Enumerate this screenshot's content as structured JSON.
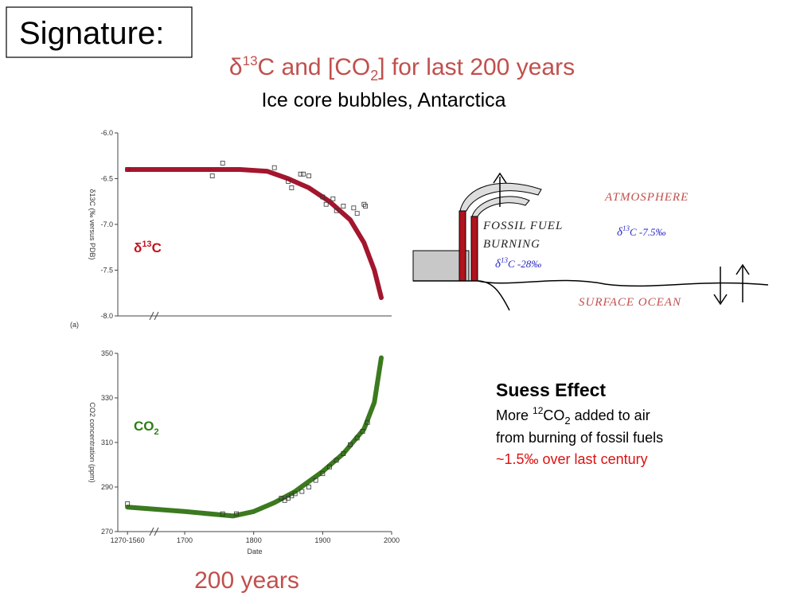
{
  "slide_title": "Signature:",
  "heading": [
    "δ",
    "13",
    "C and [CO",
    "2",
    "] for last 200 years"
  ],
  "subheading": "Ice core bubbles, Antarctica",
  "chart_data": [
    {
      "type": "line",
      "panel_label": "(a)",
      "ylabel": "δ13C (‰ versus PDB)",
      "annotation": [
        "δ",
        "13",
        "C"
      ],
      "annotation_script": "super",
      "annotation_color": "#c0141e",
      "xlim": [
        1603,
        2000
      ],
      "ylim": [
        -8.0,
        -6.0
      ],
      "yticks": [
        {
          "value": -6.0,
          "label": "-6.0"
        },
        {
          "value": -6.5,
          "label": "-6.5"
        },
        {
          "value": -7.0,
          "label": "-7.0"
        },
        {
          "value": -7.5,
          "label": "-7.5"
        },
        {
          "value": -8.0,
          "label": "-8.0"
        }
      ],
      "series": [
        {
          "mode": "line",
          "color": "#a3162e",
          "x": [
            1617,
            1700,
            1780,
            1820,
            1850,
            1880,
            1910,
            1940,
            1960,
            1975,
            1985
          ],
          "values": [
            -6.4,
            -6.4,
            -6.4,
            -6.42,
            -6.5,
            -6.6,
            -6.75,
            -6.95,
            -7.2,
            -7.5,
            -7.8
          ]
        },
        {
          "mode": "markers",
          "color": "#333333",
          "x": [
            1617,
            1755,
            1740,
            1830,
            1850,
            1855,
            1868,
            1872,
            1880,
            1900,
            1905,
            1915,
            1920,
            1930,
            1945,
            1950,
            1960,
            1962
          ],
          "values": [
            -6.4,
            -6.33,
            -6.47,
            -6.38,
            -6.53,
            -6.6,
            -6.45,
            -6.45,
            -6.47,
            -6.7,
            -6.78,
            -6.72,
            -6.85,
            -6.8,
            -6.82,
            -6.88,
            -6.78,
            -6.8
          ]
        }
      ]
    },
    {
      "type": "line",
      "ylabel": "CO2 concentration (ppm)",
      "xlabel": "Date",
      "annotation": [
        "CO",
        "2"
      ],
      "annotation_script": "sub",
      "annotation_color": "#2e7d14",
      "xlim": [
        1603,
        2000
      ],
      "ylim": [
        270,
        350
      ],
      "xticks": [
        {
          "value": 1617,
          "label": "1270-1560"
        },
        1700,
        1800,
        1900,
        2000
      ],
      "yticks": [
        270,
        290,
        310,
        330,
        350
      ],
      "series": [
        {
          "mode": "line",
          "color": "#3b7a1e",
          "x": [
            1617,
            1700,
            1770,
            1800,
            1830,
            1860,
            1900,
            1930,
            1960,
            1975,
            1985
          ],
          "values": [
            281,
            279,
            277,
            279,
            283,
            288,
            297,
            305,
            316,
            328,
            348
          ]
        },
        {
          "mode": "markers",
          "color": "#333333",
          "x": [
            1617,
            1755,
            1775,
            1840,
            1845,
            1850,
            1855,
            1860,
            1870,
            1880,
            1890,
            1900,
            1910,
            1920,
            1930,
            1940,
            1950,
            1958,
            1965
          ],
          "values": [
            282.5,
            278,
            278,
            285,
            284,
            285,
            286,
            287,
            288,
            290,
            293,
            296,
            299,
            302,
            305,
            309,
            312,
            315,
            319
          ]
        }
      ]
    }
  ],
  "diagram": {
    "atmosphere": "ATMOSPHERE",
    "atmosphere_value": [
      "δ",
      "13",
      "C -7.5‰"
    ],
    "fossil": [
      "FOSSIL FUEL",
      "BURNING"
    ],
    "fossil_value": [
      "δ",
      "13",
      "C -28‰"
    ],
    "ocean": "SURFACE OCEAN"
  },
  "suess": {
    "title": "Suess Effect",
    "line1": [
      "More ",
      "12",
      "CO",
      "2",
      " added to air"
    ],
    "line2": "from burning of fossil fuels",
    "line3": "~1.5‰ over last century"
  },
  "footer": "200 years"
}
